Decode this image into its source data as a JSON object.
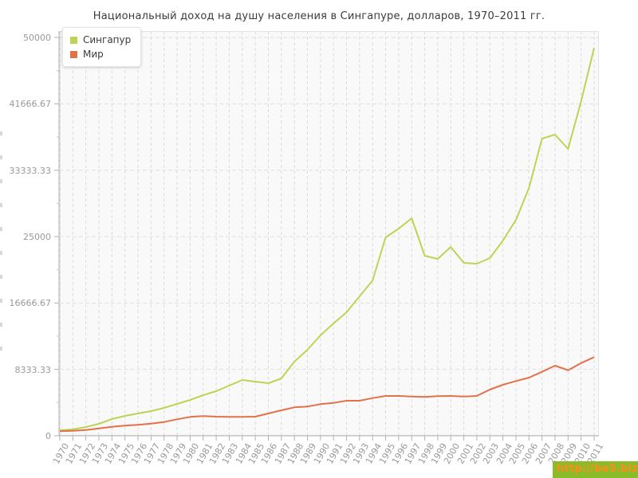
{
  "page": {
    "title": "Национальный доход на душу населения в Сингапуре, долларов, 1970–2011 гг."
  },
  "watermark": {
    "text": "http://be5.biz/",
    "bg_color": "#8abc2a",
    "text_color": "#ff8c1a"
  },
  "chart_data": {
    "type": "line",
    "title": "Национальный доход на душу населения в Сингапуре, долларов, 1970–2011 гг.",
    "xlabel": "",
    "ylabel": "",
    "ylim": [
      0,
      50000
    ],
    "grid": true,
    "legend_position": "top-left",
    "ytick_labels": [
      "0",
      "8333.33",
      "16666.67",
      "25000",
      "33333.33",
      "41666.67",
      "50000"
    ],
    "categories": [
      "1970",
      "1971",
      "1972",
      "1973",
      "1974",
      "1975",
      "1976",
      "1977",
      "1978",
      "1979",
      "1980",
      "1981",
      "1982",
      "1983",
      "1984",
      "1985",
      "1986",
      "1987",
      "1988",
      "1989",
      "1990",
      "1991",
      "1992",
      "1993",
      "1994",
      "1995",
      "1996",
      "1997",
      "1998",
      "1999",
      "2000",
      "2001",
      "2002",
      "2003",
      "2004",
      "2005",
      "2006",
      "2007",
      "2008",
      "2009",
      "2010",
      "2011"
    ],
    "series": [
      {
        "name": "Сингапур",
        "color": "#bcd455",
        "values": [
          700,
          800,
          1100,
          1500,
          2100,
          2500,
          2800,
          3100,
          3500,
          4000,
          4500,
          5100,
          5600,
          6300,
          7000,
          6800,
          6600,
          7200,
          9300,
          10800,
          12600,
          14100,
          15500,
          17500,
          19500,
          24900,
          26000,
          27300,
          22600,
          22200,
          23700,
          21700,
          21600,
          22300,
          24500,
          27100,
          31100,
          37300,
          37800,
          36000,
          42000,
          48700
        ]
      },
      {
        "name": "Мир",
        "color": "#e2714a",
        "values": [
          570,
          630,
          730,
          930,
          1130,
          1270,
          1370,
          1530,
          1730,
          2070,
          2370,
          2470,
          2400,
          2370,
          2370,
          2400,
          2800,
          3200,
          3570,
          3670,
          3970,
          4130,
          4400,
          4400,
          4730,
          5000,
          5000,
          4930,
          4870,
          4970,
          5000,
          4930,
          5000,
          5800,
          6400,
          6870,
          7300,
          8030,
          8800,
          8230,
          9130,
          9870
        ]
      }
    ],
    "style": {
      "plot_bg": "#f9f9f9",
      "grid_color": "#dcdcdc",
      "axis_color": "#b0b0b0",
      "tick_label_color": "#999999"
    }
  }
}
